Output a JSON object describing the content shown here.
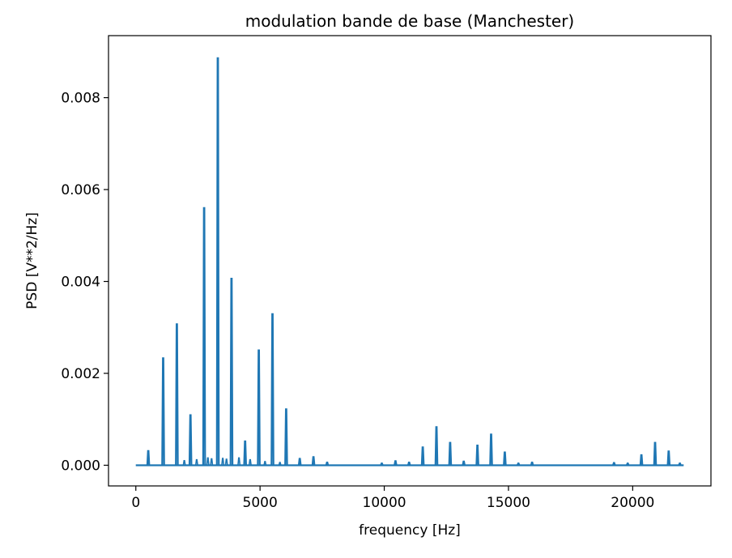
{
  "colors": {
    "series": "#1f77b4",
    "axes": "#000000",
    "background": "#ffffff"
  },
  "chart_data": {
    "type": "line",
    "title": "modulation bande de base (Manchester)",
    "xlabel": "frequency [Hz]",
    "ylabel": "PSD [V**2/Hz]",
    "xlim": [
      -1100,
      23150
    ],
    "ylim": [
      -0.00045,
      0.00935
    ],
    "grid": false,
    "x_ticks": [
      {
        "value": 0,
        "label": "0"
      },
      {
        "value": 5000,
        "label": "5000"
      },
      {
        "value": 10000,
        "label": "10000"
      },
      {
        "value": 15000,
        "label": "15000"
      },
      {
        "value": 20000,
        "label": "20000"
      }
    ],
    "y_ticks": [
      {
        "value": 0.0,
        "label": "0.000"
      },
      {
        "value": 0.002,
        "label": "0.002"
      },
      {
        "value": 0.004,
        "label": "0.004"
      },
      {
        "value": 0.006,
        "label": "0.006"
      },
      {
        "value": 0.008,
        "label": "0.008"
      }
    ],
    "baseline": 0.0,
    "x_range": [
      0,
      22050
    ],
    "peaks": [
      {
        "x": 500,
        "y": 0.00031
      },
      {
        "x": 1100,
        "y": 0.00233
      },
      {
        "x": 1650,
        "y": 0.00307
      },
      {
        "x": 2200,
        "y": 0.00109
      },
      {
        "x": 2750,
        "y": 0.0056
      },
      {
        "x": 3300,
        "y": 0.00886
      },
      {
        "x": 3850,
        "y": 0.00406
      },
      {
        "x": 4400,
        "y": 0.00052
      },
      {
        "x": 4950,
        "y": 0.0025
      },
      {
        "x": 5500,
        "y": 0.00329
      },
      {
        "x": 6050,
        "y": 0.00122
      },
      {
        "x": 6600,
        "y": 0.00014
      },
      {
        "x": 7150,
        "y": 0.00018
      },
      {
        "x": 7700,
        "y": 6e-05
      },
      {
        "x": 9900,
        "y": 4e-05
      },
      {
        "x": 10450,
        "y": 9e-05
      },
      {
        "x": 11000,
        "y": 6e-05
      },
      {
        "x": 11550,
        "y": 0.00039
      },
      {
        "x": 12100,
        "y": 0.00083
      },
      {
        "x": 12650,
        "y": 0.00049
      },
      {
        "x": 13200,
        "y": 8e-05
      },
      {
        "x": 13750,
        "y": 0.00043
      },
      {
        "x": 14300,
        "y": 0.00067
      },
      {
        "x": 14850,
        "y": 0.00028
      },
      {
        "x": 15400,
        "y": 4e-05
      },
      {
        "x": 15950,
        "y": 6e-05
      },
      {
        "x": 19250,
        "y": 5e-05
      },
      {
        "x": 19800,
        "y": 4e-05
      },
      {
        "x": 20350,
        "y": 0.00022
      },
      {
        "x": 20900,
        "y": 0.00049
      },
      {
        "x": 21450,
        "y": 0.0003
      },
      {
        "x": 21900,
        "y": 4e-05
      }
    ],
    "minor_peaks": [
      {
        "x": 1950,
        "y": 0.0001
      },
      {
        "x": 2450,
        "y": 0.00012
      },
      {
        "x": 2900,
        "y": 0.00016
      },
      {
        "x": 3050,
        "y": 0.00014
      },
      {
        "x": 3500,
        "y": 0.00015
      },
      {
        "x": 3650,
        "y": 0.00013
      },
      {
        "x": 4150,
        "y": 0.00016
      },
      {
        "x": 4600,
        "y": 0.00012
      },
      {
        "x": 5200,
        "y": 8e-05
      },
      {
        "x": 5800,
        "y": 6e-05
      }
    ]
  }
}
